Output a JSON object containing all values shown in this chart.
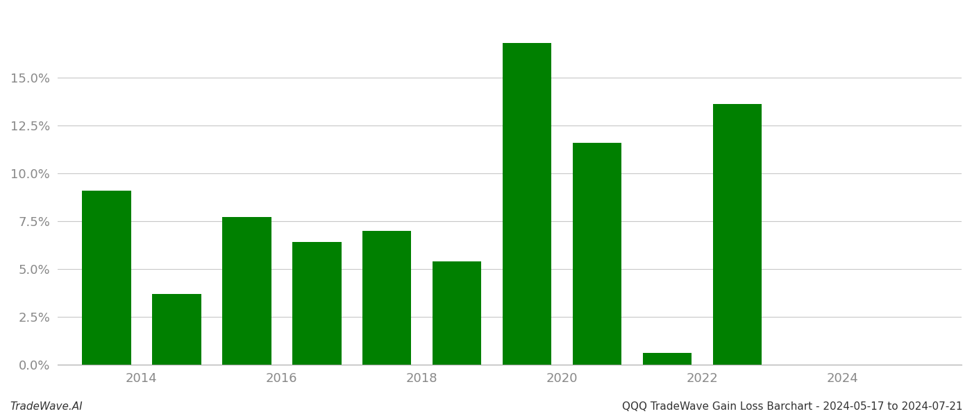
{
  "years": [
    2013,
    2014,
    2015,
    2016,
    2017,
    2018,
    2019,
    2020,
    2021,
    2022,
    2023
  ],
  "values": [
    0.091,
    0.037,
    0.077,
    0.064,
    0.07,
    0.054,
    0.168,
    0.116,
    0.006,
    0.136,
    0.0
  ],
  "bar_color": "#008000",
  "background_color": "#ffffff",
  "grid_color": "#c8c8c8",
  "footer_left": "TradeWave.AI",
  "footer_right": "QQQ TradeWave Gain Loss Barchart - 2024-05-17 to 2024-07-21",
  "ylim": [
    0,
    0.185
  ],
  "yticks": [
    0.0,
    0.025,
    0.05,
    0.075,
    0.1,
    0.125,
    0.15
  ],
  "xtick_labels": [
    "2014",
    "2016",
    "2018",
    "2020",
    "2022",
    "2024"
  ],
  "xtick_positions": [
    2013.5,
    2015.5,
    2017.5,
    2019.5,
    2021.5,
    2023.5
  ],
  "xlim": [
    2012.3,
    2025.2
  ],
  "bar_width": 0.7
}
